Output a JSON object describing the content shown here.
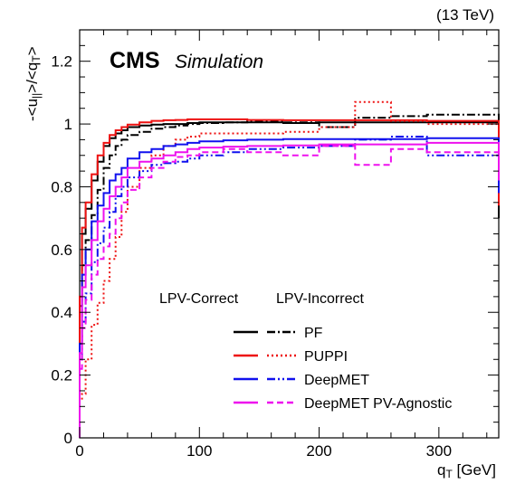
{
  "chart_data": {
    "type": "line",
    "energy_label": "(13 TeV)",
    "experiment": "CMS",
    "experiment_sub": "Simulation",
    "ylabel": "-<u_||>/<q_T>",
    "xlabel": "q_T [GeV]",
    "xlim": [
      0,
      350
    ],
    "ylim": [
      0,
      1.3
    ],
    "x_ticks": [
      "0",
      "100",
      "200",
      "300"
    ],
    "y_ticks": [
      "0",
      "0.2",
      "0.4",
      "0.6",
      "0.8",
      "1",
      "1.2"
    ],
    "legend_headers": [
      "LPV-Correct",
      "LPV-Incorrect"
    ],
    "legend_entries": [
      "PF",
      "PUPPI",
      "DeepMET",
      "DeepMET PV-Agnostic"
    ],
    "colors": {
      "PF": "#000000",
      "PUPPI": "#ee1111",
      "DeepMET": "#1111ee",
      "DeepMET PV-Agnostic": "#ee11ee"
    },
    "bin_edges": [
      0,
      2,
      5,
      10,
      15,
      20,
      25,
      30,
      35,
      40,
      50,
      60,
      70,
      80,
      90,
      100,
      120,
      140,
      170,
      200,
      230,
      260,
      290,
      350
    ],
    "series": [
      {
        "name": "PF",
        "style": "solid",
        "values": [
          0.42,
          0.65,
          0.73,
          0.82,
          0.88,
          0.93,
          0.955,
          0.97,
          0.98,
          0.99,
          0.995,
          0.998,
          1.0,
          1.0,
          1.003,
          1.005,
          1.005,
          1.005,
          1.003,
          1.005,
          1.005,
          1.005,
          1.005
        ]
      },
      {
        "name": "PF",
        "style": "dashdot",
        "values": [
          0.3,
          0.55,
          0.63,
          0.71,
          0.79,
          0.86,
          0.9,
          0.93,
          0.95,
          0.965,
          0.975,
          0.985,
          0.99,
          0.995,
          1.0,
          1.003,
          1.005,
          1.01,
          1.005,
          0.99,
          1.02,
          1.025,
          1.03
        ]
      },
      {
        "name": "PUPPI",
        "style": "solid",
        "values": [
          0.45,
          0.67,
          0.75,
          0.84,
          0.9,
          0.94,
          0.965,
          0.98,
          0.99,
          0.998,
          1.005,
          1.01,
          1.012,
          1.013,
          1.015,
          1.015,
          1.015,
          1.013,
          1.012,
          1.012,
          1.012,
          1.012,
          1.01
        ]
      },
      {
        "name": "PUPPI",
        "style": "dotted",
        "values": [
          0.12,
          0.14,
          0.25,
          0.36,
          0.43,
          0.5,
          0.57,
          0.64,
          0.72,
          0.8,
          0.86,
          0.9,
          0.93,
          0.95,
          0.96,
          0.97,
          0.97,
          0.97,
          0.975,
          0.99,
          1.07,
          1.01,
          1.0
        ]
      },
      {
        "name": "DeepMET",
        "style": "solid",
        "values": [
          0.3,
          0.52,
          0.6,
          0.69,
          0.74,
          0.78,
          0.82,
          0.84,
          0.86,
          0.89,
          0.91,
          0.92,
          0.93,
          0.935,
          0.94,
          0.945,
          0.948,
          0.95,
          0.952,
          0.952,
          0.952,
          0.952,
          0.955
        ]
      },
      {
        "name": "DeepMET",
        "style": "dashdotdot",
        "values": [
          0.25,
          0.37,
          0.46,
          0.56,
          0.62,
          0.67,
          0.72,
          0.77,
          0.8,
          0.83,
          0.85,
          0.87,
          0.875,
          0.88,
          0.89,
          0.9,
          0.91,
          0.92,
          0.925,
          0.93,
          0.95,
          0.96,
          0.9
        ]
      },
      {
        "name": "DeepMET PV-Agnostic",
        "style": "solid",
        "values": [
          0.27,
          0.48,
          0.55,
          0.63,
          0.69,
          0.73,
          0.77,
          0.8,
          0.83,
          0.86,
          0.88,
          0.89,
          0.9,
          0.91,
          0.92,
          0.925,
          0.928,
          0.93,
          0.932,
          0.935,
          0.935,
          0.935,
          0.94
        ]
      },
      {
        "name": "DeepMET PV-Agnostic",
        "style": "dashed",
        "values": [
          0.22,
          0.35,
          0.44,
          0.52,
          0.57,
          0.61,
          0.65,
          0.7,
          0.75,
          0.79,
          0.83,
          0.86,
          0.88,
          0.895,
          0.9,
          0.91,
          0.92,
          0.91,
          0.9,
          0.93,
          0.87,
          0.92,
          0.91
        ]
      }
    ]
  }
}
